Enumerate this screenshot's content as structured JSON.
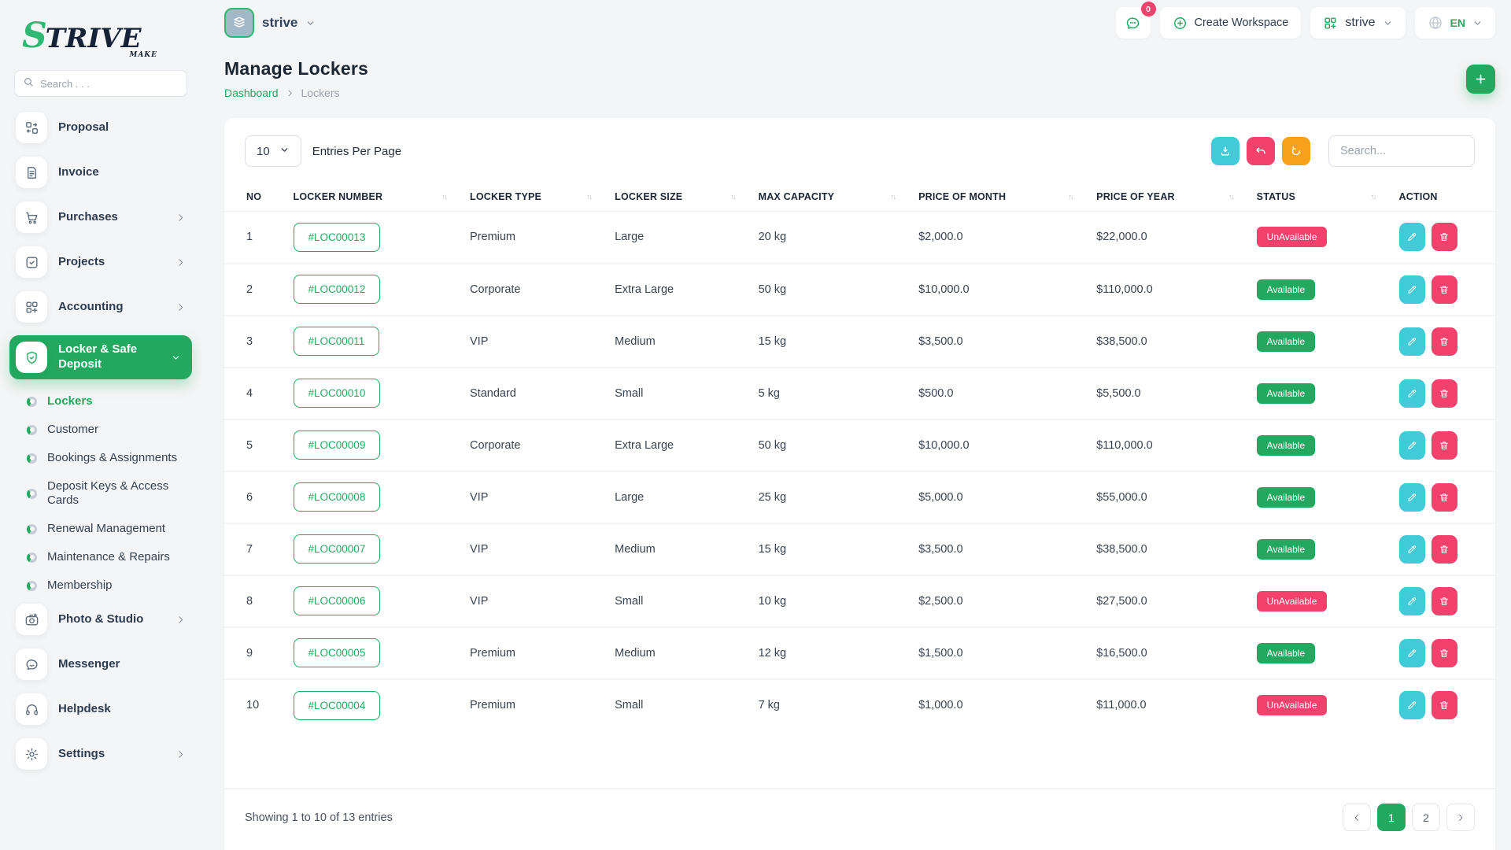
{
  "brand": {
    "logo_text_accent": "S",
    "logo_text_rest": "TRIVE",
    "logo_tagline": "MAKE"
  },
  "topbar": {
    "workspace_name": "strive",
    "chat_badge": "0",
    "create_workspace_label": "Create Workspace",
    "workspace_switcher_label": "strive",
    "language_label": "EN"
  },
  "page": {
    "title": "Manage Lockers",
    "breadcrumb_home": "Dashboard",
    "breadcrumb_current": "Lockers"
  },
  "sidebar": {
    "search_placeholder": "Search . . .",
    "menu": [
      {
        "label": "Proposal",
        "icon": "proposal-icon",
        "type": "item"
      },
      {
        "label": "Invoice",
        "icon": "invoice-icon",
        "type": "item"
      },
      {
        "label": "Purchases",
        "icon": "purchases-icon",
        "type": "item",
        "chevron": true
      },
      {
        "label": "Projects",
        "icon": "projects-icon",
        "type": "item",
        "chevron": true
      },
      {
        "label": "Accounting",
        "icon": "accounting-icon",
        "type": "item",
        "chevron": true
      },
      {
        "label": "Locker & Safe Deposit",
        "icon": "locker-icon",
        "type": "item",
        "active": true,
        "expanded": true
      },
      {
        "label": "Lockers",
        "type": "sub",
        "active": true
      },
      {
        "label": "Customer",
        "type": "sub"
      },
      {
        "label": "Bookings & Assignments",
        "type": "sub"
      },
      {
        "label": "Deposit Keys & Access Cards",
        "type": "sub"
      },
      {
        "label": "Renewal Management",
        "type": "sub"
      },
      {
        "label": "Maintenance & Repairs",
        "type": "sub"
      },
      {
        "label": "Membership",
        "type": "sub"
      },
      {
        "label": "Photo & Studio",
        "icon": "photo-icon",
        "type": "item",
        "chevron": true
      },
      {
        "label": "Messenger",
        "icon": "messenger-icon",
        "type": "item"
      },
      {
        "label": "Helpdesk",
        "icon": "helpdesk-icon",
        "type": "item"
      },
      {
        "label": "Settings",
        "icon": "settings-icon",
        "type": "item",
        "chevron": true
      }
    ]
  },
  "toolbar": {
    "entries_per_page_value": "10",
    "entries_per_page_label": "Entries Per Page",
    "search_placeholder": "Search...",
    "action_icons": [
      "download-icon",
      "undo-icon",
      "refresh-icon"
    ]
  },
  "table": {
    "columns": [
      {
        "label": "NO",
        "sortable": false
      },
      {
        "label": "LOCKER NUMBER",
        "sortable": true
      },
      {
        "label": "LOCKER TYPE",
        "sortable": true
      },
      {
        "label": "LOCKER SIZE",
        "sortable": true
      },
      {
        "label": "MAX CAPACITY",
        "sortable": true
      },
      {
        "label": "PRICE OF MONTH",
        "sortable": true
      },
      {
        "label": "PRICE OF YEAR",
        "sortable": true
      },
      {
        "label": "STATUS",
        "sortable": true
      },
      {
        "label": "ACTION",
        "sortable": false
      }
    ],
    "rows": [
      {
        "no": "1",
        "number": "#LOC00013",
        "type": "Premium",
        "size": "Large",
        "capacity": "20 kg",
        "price_month": "$2,000.0",
        "price_year": "$22,000.0",
        "status": "UnAvailable"
      },
      {
        "no": "2",
        "number": "#LOC00012",
        "type": "Corporate",
        "size": "Extra Large",
        "capacity": "50 kg",
        "price_month": "$10,000.0",
        "price_year": "$110,000.0",
        "status": "Available"
      },
      {
        "no": "3",
        "number": "#LOC00011",
        "type": "VIP",
        "size": "Medium",
        "capacity": "15 kg",
        "price_month": "$3,500.0",
        "price_year": "$38,500.0",
        "status": "Available"
      },
      {
        "no": "4",
        "number": "#LOC00010",
        "type": "Standard",
        "size": "Small",
        "capacity": "5 kg",
        "price_month": "$500.0",
        "price_year": "$5,500.0",
        "status": "Available"
      },
      {
        "no": "5",
        "number": "#LOC00009",
        "type": "Corporate",
        "size": "Extra Large",
        "capacity": "50 kg",
        "price_month": "$10,000.0",
        "price_year": "$110,000.0",
        "status": "Available"
      },
      {
        "no": "6",
        "number": "#LOC00008",
        "type": "VIP",
        "size": "Large",
        "capacity": "25 kg",
        "price_month": "$5,000.0",
        "price_year": "$55,000.0",
        "status": "Available"
      },
      {
        "no": "7",
        "number": "#LOC00007",
        "type": "VIP",
        "size": "Medium",
        "capacity": "15 kg",
        "price_month": "$3,500.0",
        "price_year": "$38,500.0",
        "status": "Available"
      },
      {
        "no": "8",
        "number": "#LOC00006",
        "type": "VIP",
        "size": "Small",
        "capacity": "10 kg",
        "price_month": "$2,500.0",
        "price_year": "$27,500.0",
        "status": "UnAvailable"
      },
      {
        "no": "9",
        "number": "#LOC00005",
        "type": "Premium",
        "size": "Medium",
        "capacity": "12 kg",
        "price_month": "$1,500.0",
        "price_year": "$16,500.0",
        "status": "Available"
      },
      {
        "no": "10",
        "number": "#LOC00004",
        "type": "Premium",
        "size": "Small",
        "capacity": "7 kg",
        "price_month": "$1,000.0",
        "price_year": "$11,000.0",
        "status": "UnAvailable"
      }
    ]
  },
  "pagination": {
    "showing_text": "Showing 1 to 10 of 13 entries",
    "pages": [
      "1",
      "2"
    ],
    "active_page": "1"
  },
  "colors": {
    "accent_green": "#23a95f",
    "logo_green": "#2eb873",
    "pink": "#f1416c",
    "cyan": "#41cbd8",
    "orange": "#f9a11b"
  }
}
